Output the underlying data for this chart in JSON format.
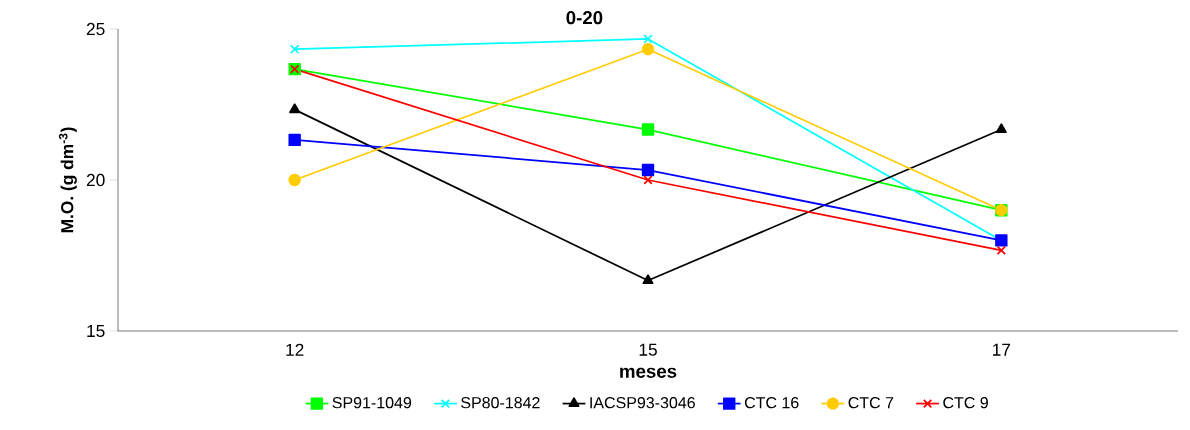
{
  "chart_data": {
    "type": "line",
    "title": "0-20",
    "xlabel": "meses",
    "ylabel": "M.O.  (g dm$^{-3}$)",
    "categories": [
      "12",
      "15",
      "17"
    ],
    "ylim": [
      15,
      25
    ],
    "yticks": [
      15,
      20,
      25
    ],
    "grid": false,
    "legend": "bottom",
    "series": [
      {
        "name": "SP91-1049",
        "color": "#00ff00",
        "marker": "square",
        "values": [
          23.67,
          21.67,
          19.0
        ]
      },
      {
        "name": "SP80-1842",
        "color": "#00ffff",
        "marker": "cross",
        "values": [
          24.33,
          24.67,
          18.0
        ]
      },
      {
        "name": "IACSP93-3046",
        "color": "#000000",
        "marker": "triangle",
        "values": [
          22.33,
          16.67,
          21.67
        ]
      },
      {
        "name": "CTC 16",
        "color": "#0000ff",
        "marker": "square",
        "values": [
          21.33,
          20.33,
          18.0
        ]
      },
      {
        "name": "CTC 7",
        "color": "#ffcc00",
        "marker": "circle",
        "values": [
          20.0,
          24.33,
          19.0
        ]
      },
      {
        "name": "CTC 9",
        "color": "#ff0000",
        "marker": "cross",
        "values": [
          23.67,
          20.0,
          17.67
        ]
      }
    ]
  }
}
